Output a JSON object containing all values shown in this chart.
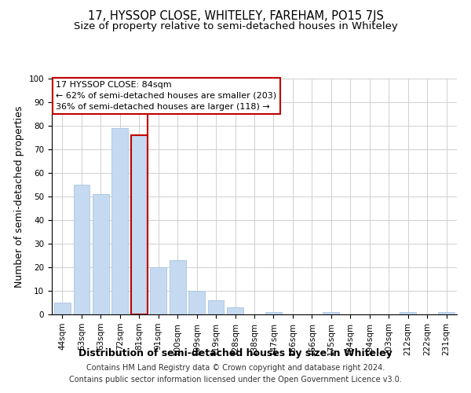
{
  "title": "17, HYSSOP CLOSE, WHITELEY, FAREHAM, PO15 7JS",
  "subtitle": "Size of property relative to semi-detached houses in Whiteley",
  "xlabel": "Distribution of semi-detached houses by size in Whiteley",
  "ylabel": "Number of semi-detached properties",
  "categories": [
    "44sqm",
    "53sqm",
    "63sqm",
    "72sqm",
    "81sqm",
    "91sqm",
    "100sqm",
    "109sqm",
    "119sqm",
    "128sqm",
    "138sqm",
    "147sqm",
    "156sqm",
    "166sqm",
    "175sqm",
    "184sqm",
    "194sqm",
    "203sqm",
    "212sqm",
    "222sqm",
    "231sqm"
  ],
  "values": [
    5,
    55,
    51,
    79,
    76,
    20,
    23,
    10,
    6,
    3,
    0,
    1,
    0,
    0,
    1,
    0,
    0,
    0,
    1,
    0,
    1
  ],
  "bar_color": "#c5d9f1",
  "bar_edge_color": "#a8c4e0",
  "highlight_index": 4,
  "highlight_edge_color": "#c00000",
  "vline_color": "#c00000",
  "ylim": [
    0,
    100
  ],
  "yticks": [
    0,
    10,
    20,
    30,
    40,
    50,
    60,
    70,
    80,
    90,
    100
  ],
  "annotation_title": "17 HYSSOP CLOSE: 84sqm",
  "annotation_line1": "← 62% of semi-detached houses are smaller (203)",
  "annotation_line2": "36% of semi-detached houses are larger (118) →",
  "annotation_box_color": "#ffffff",
  "annotation_box_edge": "#c00000",
  "footer_line1": "Contains HM Land Registry data © Crown copyright and database right 2024.",
  "footer_line2": "Contains public sector information licensed under the Open Government Licence v3.0.",
  "background_color": "#ffffff",
  "grid_color": "#d0d0d0",
  "title_fontsize": 10.5,
  "subtitle_fontsize": 9.5,
  "axis_label_fontsize": 9,
  "tick_fontsize": 7.5,
  "footer_fontsize": 7
}
